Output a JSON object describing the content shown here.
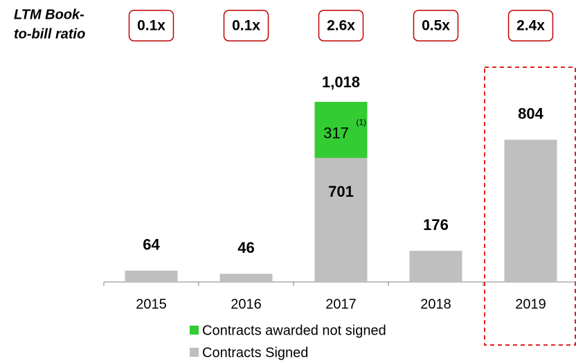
{
  "chart_data": {
    "type": "stacked_bar",
    "categories": [
      "2015",
      "2016",
      "2017",
      "2018",
      "2019"
    ],
    "series": [
      {
        "name": "Contracts Signed",
        "color": "#bfbfbf",
        "values": [
          64,
          46,
          701,
          176,
          804
        ]
      },
      {
        "name": "Contracts awarded not signed",
        "color": "#33cc33",
        "values": [
          null,
          null,
          317,
          null,
          null
        ],
        "note": "(1)"
      }
    ],
    "annotations": [
      {
        "category": "2017",
        "text": "1,018"
      }
    ],
    "ratios": {
      "label": [
        "LTM Book-",
        "to-bill ratio"
      ],
      "values": [
        0.1,
        0.1,
        2.6,
        0.5,
        2.4
      ],
      "value_labels": [
        "0.1x",
        "0.1x",
        "2.6x",
        "0.5x",
        "2.4x"
      ]
    },
    "highlight": "2019"
  }
}
